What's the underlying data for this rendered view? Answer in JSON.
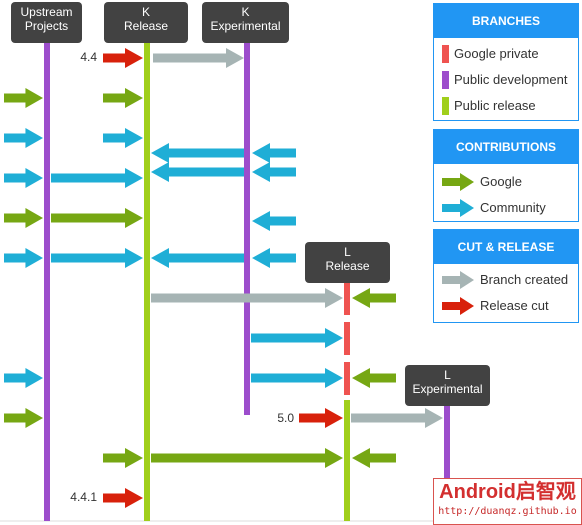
{
  "colors": {
    "google_private": "#EF5350",
    "public_development": "#9C4DCC",
    "public_release": "#A0CF1B",
    "google": "#76A713",
    "community": "#1FAED6",
    "branch_created": "#A6B4B4",
    "release_cut": "#D8210B",
    "legend_blue": "#2196F3",
    "header_bg": "#424242"
  },
  "headers": {
    "upstream": {
      "line1": "Upstream",
      "line2": "Projects"
    },
    "k_release": {
      "line1": "K",
      "line2": "Release"
    },
    "k_experimental": {
      "line1": "K",
      "line2": "Experimental"
    },
    "l_release": {
      "line1": "L",
      "line2": "Release"
    },
    "l_experimental": {
      "line1": "L",
      "line2": "Experimental"
    }
  },
  "version_labels": {
    "v44": "4.4",
    "v50": "5.0",
    "v441": "4.4.1"
  },
  "legend": {
    "branches": {
      "title": "BRANCHES",
      "items": [
        "Google private",
        "Public development",
        "Public release"
      ]
    },
    "contributions": {
      "title": "CONTRIBUTIONS",
      "items": [
        "Google",
        "Community"
      ]
    },
    "cut_release": {
      "title": "CUT & RELEASE",
      "items": [
        "Branch created",
        "Release cut"
      ]
    }
  },
  "watermark": {
    "title": "Android启智观",
    "url": "http://duanqz.github.io"
  }
}
